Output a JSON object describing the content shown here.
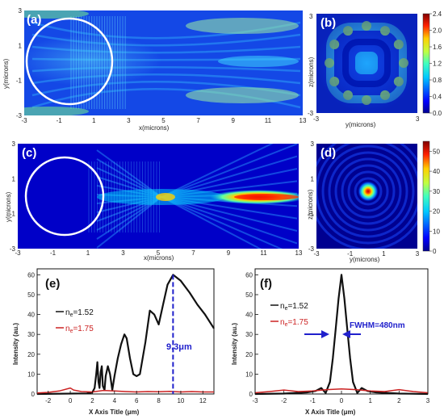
{
  "chart_data": [
    {
      "panel": "(a)",
      "type": "heatmap",
      "xlabel": "x(microns)",
      "ylabel": "y(microns)",
      "x_ticks": [
        "-3",
        "-1",
        "1",
        "3",
        "5",
        "7",
        "9",
        "11",
        "13"
      ],
      "y_ticks": [
        "-3",
        "-1",
        "1",
        "3"
      ],
      "xlim": [
        -3,
        13
      ],
      "ylim": [
        -3,
        3
      ],
      "colormap": "jet"
    },
    {
      "panel": "(b)",
      "type": "heatmap",
      "xlabel": "y(microns)",
      "ylabel": "z(microns)",
      "x_ticks": [
        "-3",
        "",
        "",
        "3"
      ],
      "y_ticks": [
        "-3",
        "",
        "",
        "3"
      ],
      "colorbar_ticks": [
        "2.4",
        "2.0",
        "1.6",
        "1.2",
        "0.8",
        "0.4",
        "0.0"
      ],
      "colorbar_range": [
        0.0,
        2.4
      ]
    },
    {
      "panel": "(c)",
      "type": "heatmap",
      "xlabel": "x(microns)",
      "ylabel": "y(microns)",
      "x_ticks": [
        "-3",
        "-1",
        "1",
        "3",
        "5",
        "7",
        "9",
        "11",
        "13"
      ],
      "y_ticks": [
        "-3",
        "-1",
        "1",
        "3"
      ],
      "xlim": [
        -3,
        13
      ],
      "ylim": [
        -3,
        3
      ],
      "colormap": "jet"
    },
    {
      "panel": "(d)",
      "type": "heatmap",
      "xlabel": "y(microns)",
      "ylabel": "z(microns)",
      "x_ticks": [
        "-3",
        "-1",
        "1",
        "3"
      ],
      "y_ticks": [
        "-3",
        "-1",
        "1",
        "3"
      ],
      "colorbar_ticks": [
        "50",
        "40",
        "30",
        "20",
        "10",
        "0"
      ],
      "colorbar_range": [
        0,
        55
      ]
    },
    {
      "panel": "(e)",
      "type": "line",
      "xlabel": "X Axis Title (μm)",
      "ylabel": "Intensity (au.)",
      "xlim": [
        -3,
        13
      ],
      "ylim": [
        0,
        63
      ],
      "x_ticks": [
        -2,
        0,
        2,
        4,
        6,
        8,
        10,
        12
      ],
      "y_ticks": [
        0,
        10,
        20,
        30,
        40,
        50,
        60
      ],
      "annotation": "9.3μm",
      "marker_x": 9.3,
      "series": [
        {
          "name": "n_e=1.52",
          "color": "#111111",
          "x": [
            -3,
            1.5,
            2.0,
            2.2,
            2.35,
            2.45,
            2.55,
            2.65,
            2.75,
            2.85,
            2.95,
            3.1,
            3.2,
            3.4,
            3.6,
            3.8,
            4.0,
            4.3,
            4.6,
            4.9,
            5.1,
            5.4,
            5.7,
            6.0,
            6.3,
            6.8,
            7.2,
            7.6,
            8.0,
            8.4,
            8.8,
            9.3,
            10.0,
            10.8,
            11.5,
            12.2,
            13
          ],
          "y": [
            0,
            0.3,
            0.8,
            3,
            10,
            16,
            6,
            3,
            11,
            14,
            4,
            2,
            9,
            14,
            10,
            2,
            9,
            18,
            25,
            30,
            28,
            18,
            10,
            9,
            10,
            26,
            42,
            40,
            35,
            45,
            55,
            60,
            57,
            51,
            45,
            40,
            33
          ]
        },
        {
          "name": "n_e=1.75",
          "color": "#cc2222",
          "x": [
            -3,
            -2,
            -1,
            0,
            0.3,
            1,
            2,
            3,
            4,
            5,
            6,
            7,
            8,
            9,
            10,
            11,
            12,
            13
          ],
          "y": [
            0.5,
            0.8,
            1.5,
            3,
            2,
            1.2,
            1,
            1.8,
            1.5,
            1.2,
            1,
            1.2,
            1.1,
            1.3,
            1,
            1.2,
            1,
            1
          ]
        }
      ],
      "legend": {
        "l1a": "n",
        "l1b": "e",
        "l1c": "=1.52",
        "l2a": "n",
        "l2b": "e",
        "l2c": "=1.75"
      }
    },
    {
      "panel": "(f)",
      "type": "line",
      "xlabel": "X Axis Title (μm)",
      "ylabel": "Intensity (au.)",
      "xlim": [
        -3,
        3
      ],
      "ylim": [
        0,
        63
      ],
      "x_ticks": [
        -3,
        -2,
        -1,
        0,
        1,
        2,
        3
      ],
      "y_ticks": [
        0,
        10,
        20,
        30,
        40,
        50,
        60
      ],
      "annotation": "FWHM=480nm",
      "series": [
        {
          "name": "n_e=1.52",
          "color": "#111111",
          "x": [
            -3,
            -2,
            -1.2,
            -0.9,
            -0.7,
            -0.55,
            -0.4,
            -0.3,
            -0.2,
            -0.1,
            0,
            0.1,
            0.2,
            0.3,
            0.4,
            0.55,
            0.7,
            0.9,
            1.2,
            2,
            3
          ],
          "y": [
            0,
            0.2,
            0.8,
            1.5,
            3,
            0.5,
            6,
            18,
            33,
            48,
            60,
            48,
            33,
            18,
            6,
            0.5,
            3,
            1.5,
            0.8,
            0.2,
            0
          ]
        },
        {
          "name": "n_e=1.75",
          "color": "#cc2222",
          "x": [
            -3,
            -2.5,
            -2,
            -1.5,
            -1,
            -0.5,
            0,
            0.5,
            1,
            1.5,
            2,
            2.5,
            3
          ],
          "y": [
            0.6,
            1.2,
            2,
            1.2,
            1.5,
            2.2,
            2.5,
            2.2,
            1.5,
            1.2,
            2.2,
            1.2,
            0.6
          ]
        }
      ],
      "legend": {
        "l1a": "n",
        "l1b": "e",
        "l1c": "=1.52",
        "l2a": "n",
        "l2b": "e",
        "l2c": "=1.75"
      }
    }
  ],
  "colors": {
    "jet_low": "#00008f",
    "jet_mid": "#00c8ff",
    "jet_high": "#ff2000",
    "series_black": "#111111",
    "series_red": "#cc2222",
    "marker_blue": "#2020cc"
  }
}
